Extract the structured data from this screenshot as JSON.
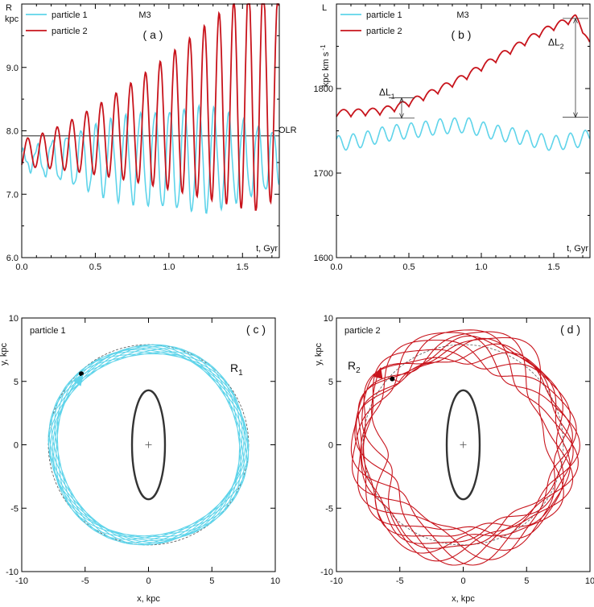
{
  "colors": {
    "particle1": "#5fd4ea",
    "particle2": "#c8141c",
    "axis": "#000000",
    "ellipse": "#333333",
    "dashed": "#555555"
  },
  "chart_data": [
    {
      "id": "a",
      "type": "line",
      "panel_label": "( a )",
      "model_label": "M3",
      "xlabel": "t, Gyr",
      "ylabel_top": "R",
      "ylabel_unit": "kpc",
      "xlim": [
        0,
        1.75
      ],
      "ylim": [
        6.0,
        10.0
      ],
      "xticks": [
        "0.0",
        "0.5",
        "1.0",
        "1.5"
      ],
      "yticks": [
        "6.0",
        "7.0",
        "8.0",
        "9.0"
      ],
      "hline": {
        "y": 7.92,
        "label": "OLR"
      },
      "legend": [
        "particle 1",
        "particle 2"
      ],
      "series": [
        {
          "name": "particle 1",
          "color_key": "particle1",
          "mean": 7.55,
          "amp_start": 0.12,
          "amp_peak": 0.82,
          "period": 0.1,
          "x_end": 1.75
        },
        {
          "name": "particle 2",
          "color_key": "particle2",
          "mean_start": 7.65,
          "mean_peak": 8.55,
          "amp_start": 0.22,
          "amp_peak": 1.85,
          "period": 0.1,
          "x_peak": 1.6,
          "x_end": 1.75
        }
      ]
    },
    {
      "id": "b",
      "type": "line",
      "panel_label": "( b )",
      "model_label": "M3",
      "xlabel": "t, Gyr",
      "ylabel_top": "L",
      "ylabel_unit": "kpc km s",
      "ylabel_exp": "-1",
      "xlim": [
        0,
        1.75
      ],
      "ylim": [
        1600,
        1900
      ],
      "xticks": [
        "0.0",
        "0.5",
        "1.0",
        "1.5"
      ],
      "yticks": [
        "1600",
        "1700",
        "1800"
      ],
      "legend": [
        "particle 1",
        "particle 2"
      ],
      "annotations": [
        {
          "label": "ΔL",
          "sub": "1",
          "x": 0.45,
          "y_low": 1765,
          "y_high": 1789
        },
        {
          "label": "ΔL",
          "sub": "2",
          "x": 1.65,
          "y_low": 1766,
          "y_high": 1883
        }
      ],
      "series": [
        {
          "name": "particle 1",
          "color_key": "particle1",
          "points": [
            [
              0.0,
              1735
            ],
            [
              0.1,
              1737
            ],
            [
              0.2,
              1740
            ],
            [
              0.3,
              1745
            ],
            [
              0.4,
              1748
            ],
            [
              0.5,
              1750
            ],
            [
              0.6,
              1752
            ],
            [
              0.7,
              1755
            ],
            [
              0.8,
              1756
            ],
            [
              0.9,
              1757
            ],
            [
              1.0,
              1752
            ],
            [
              1.1,
              1748
            ],
            [
              1.2,
              1745
            ],
            [
              1.3,
              1742
            ],
            [
              1.4,
              1738
            ],
            [
              1.5,
              1735
            ],
            [
              1.6,
              1738
            ],
            [
              1.7,
              1740
            ],
            [
              1.75,
              1745
            ]
          ],
          "wiggle": 9,
          "period": 0.1
        },
        {
          "name": "particle 2",
          "color_key": "particle2",
          "points": [
            [
              0.0,
              1771
            ],
            [
              0.1,
              1771
            ],
            [
              0.2,
              1772
            ],
            [
              0.3,
              1773
            ],
            [
              0.4,
              1777
            ],
            [
              0.5,
              1783
            ],
            [
              0.6,
              1790
            ],
            [
              0.7,
              1798
            ],
            [
              0.8,
              1806
            ],
            [
              0.9,
              1815
            ],
            [
              1.0,
              1825
            ],
            [
              1.1,
              1835
            ],
            [
              1.2,
              1845
            ],
            [
              1.3,
              1855
            ],
            [
              1.4,
              1865
            ],
            [
              1.5,
              1873
            ],
            [
              1.6,
              1880
            ],
            [
              1.65,
              1883
            ],
            [
              1.7,
              1870
            ],
            [
              1.75,
              1850
            ]
          ],
          "wiggle": 6,
          "period": 0.1
        }
      ]
    },
    {
      "id": "c",
      "type": "scatter",
      "panel_label": "( c )",
      "particle_label": "particle  1",
      "orbit_label": "R",
      "orbit_label_sub": "1",
      "xlabel": "x, kpc",
      "ylabel": "y, kpc",
      "xlim": [
        -10,
        10
      ],
      "ylim": [
        -10,
        10
      ],
      "xticks": [
        "-10",
        "-5",
        "0",
        "5",
        "10"
      ],
      "yticks": [
        "-10",
        "-5",
        "0",
        "5",
        "10"
      ],
      "color_key": "particle1",
      "dashed_radius": 7.9,
      "bar": {
        "a": 4.3,
        "b": 1.3
      },
      "orbit": {
        "r_mean": 7.55,
        "r_amp": 0.45,
        "loops": 10
      },
      "start_point": [
        -5.3,
        5.6
      ]
    },
    {
      "id": "d",
      "type": "scatter",
      "panel_label": "( d )",
      "particle_label": "particle  2",
      "orbit_label": "R",
      "orbit_label_sub": "2",
      "xlabel": "x, kpc",
      "ylabel": "y, kpc",
      "xlim": [
        -10,
        10
      ],
      "ylim": [
        -10,
        10
      ],
      "xticks": [
        "-10",
        "-5",
        "0",
        "5",
        "10"
      ],
      "yticks": [
        "-10",
        "-5",
        "0",
        "5",
        "10"
      ],
      "color_key": "particle2",
      "dashed_radius": 7.9,
      "bar": {
        "a": 4.3,
        "b": 1.3
      },
      "orbit": {
        "r_mean": 7.9,
        "r_amp": 1.6,
        "loops": 10
      },
      "start_point": [
        -5.6,
        5.2
      ]
    }
  ]
}
